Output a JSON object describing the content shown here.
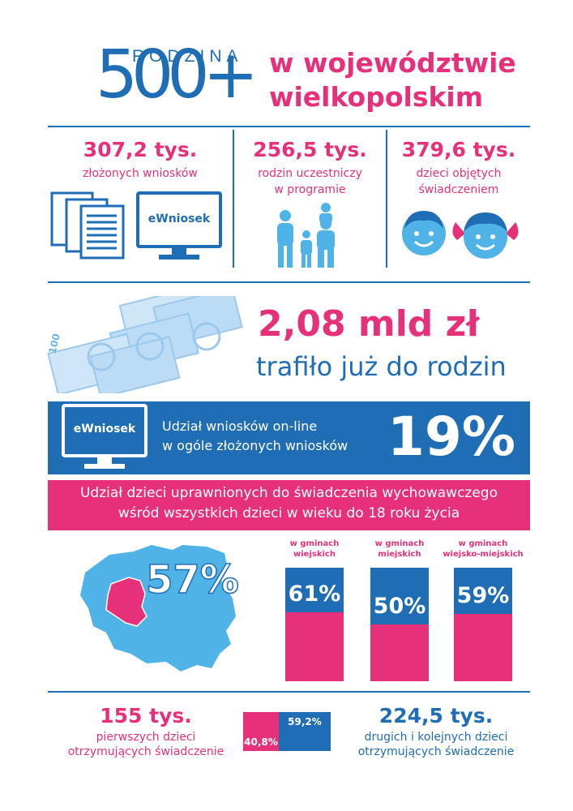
{
  "logo": {
    "word": "RODZINA",
    "number": "500+"
  },
  "title": {
    "line1": "w województwie",
    "line2": "wielkopolskim"
  },
  "stats": [
    {
      "value": "307,2 tys.",
      "label1": "złożonych wniosków",
      "label2": ""
    },
    {
      "value": "256,5 tys.",
      "label1": "rodzin uczestniczy",
      "label2": "w programie"
    },
    {
      "value": "379,6 tys.",
      "label1": "dzieci objętych",
      "label2": "świadczeniem"
    }
  ],
  "monitor_label": "eWniosek",
  "amount": {
    "value": "2,08 mld zł",
    "label": "trafiło już do rodzin"
  },
  "online": {
    "monitor_label": "eWniosek",
    "line1": "Udział wniosków on-line",
    "line2": "w ogóle złożonych wniosków",
    "percent": "19%"
  },
  "share": {
    "line1": "Udział dzieci uprawnionych do świadczenia wychowawczego",
    "line2": "wśród wszystkich dzieci w wieku do 18 roku życia"
  },
  "region_percent": "57%",
  "columns": [
    {
      "header1": "w gminach",
      "header2": "wiejskich",
      "value": 61,
      "label": "61%"
    },
    {
      "header1": "w gminach",
      "header2": "miejskich",
      "value": 50,
      "label": "50%"
    },
    {
      "header1": "w gminach",
      "header2": "wiejsko-miejskich",
      "value": 59,
      "label": "59%"
    }
  ],
  "first_children": {
    "value": "155 tys.",
    "line1": "pierwszych dzieci",
    "line2": "otrzymujących świadczenie"
  },
  "next_children": {
    "value": "224,5 tys.",
    "line1": "drugich i kolejnych dzieci",
    "line2": "otrzymujących świadczenie"
  },
  "split": {
    "first_pct": 40.8,
    "first_label": "40,8%",
    "next_pct": 59.2,
    "next_label": "59,2%"
  },
  "colors": {
    "pink": "#e6317a",
    "blue": "#1f6db5",
    "light_blue": "#4fb3e8"
  }
}
